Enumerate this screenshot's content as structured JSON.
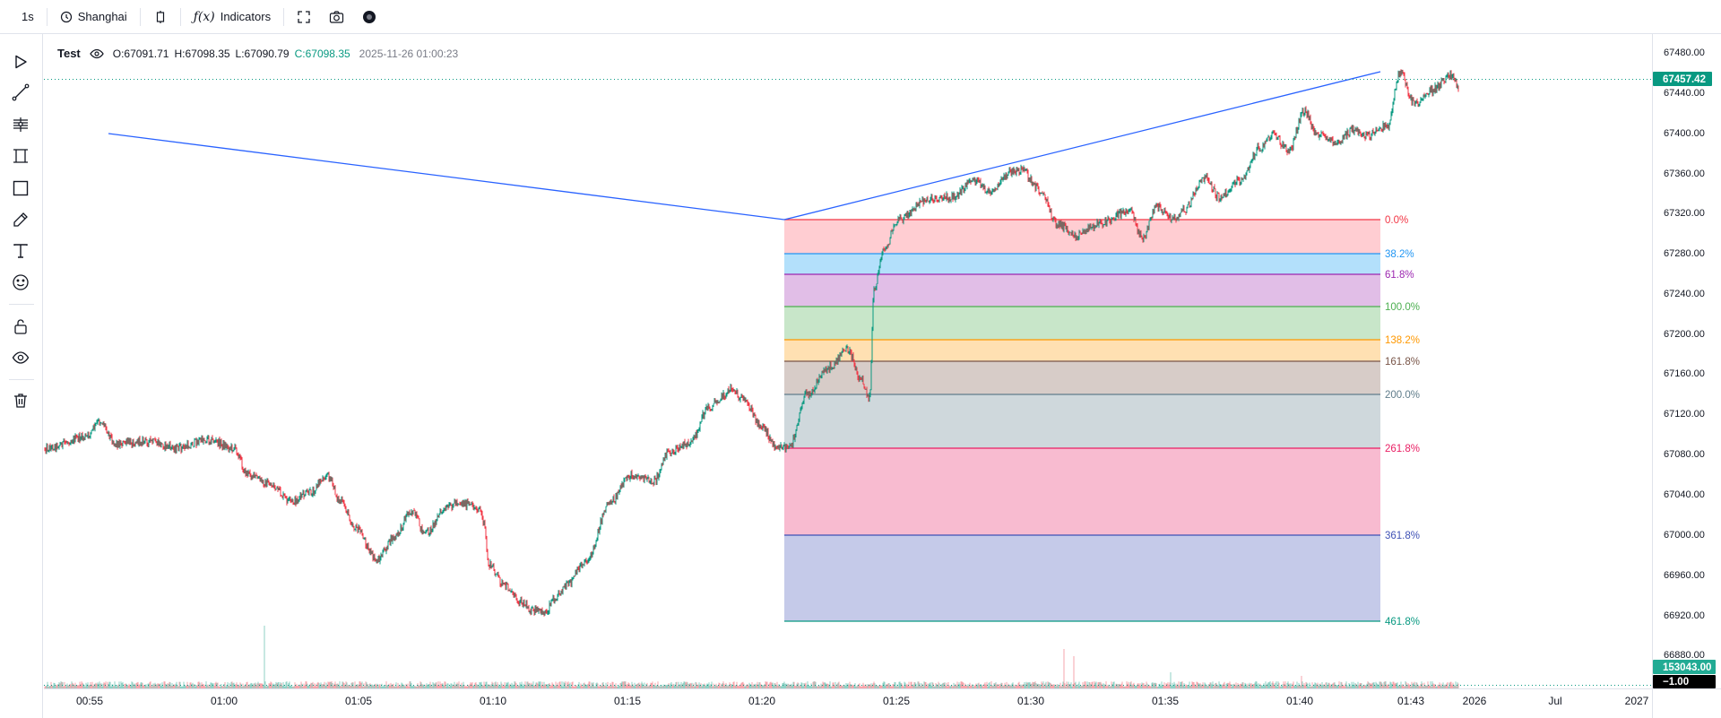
{
  "toolbar": {
    "interval": "1s",
    "timezone": "Shanghai",
    "indicators": "Indicators"
  },
  "legend": {
    "symbol": "Test",
    "open": "O:67091.71",
    "high": "H:67098.35",
    "low": "L:67090.79",
    "close": "C:67098.35",
    "time": "2025-11-26 01:00:23"
  },
  "price_axis": [
    "67480.00",
    "67440.00",
    "67400.00",
    "67360.00",
    "67320.00",
    "67280.00",
    "67240.00",
    "67200.00",
    "67160.00",
    "67120.00",
    "67080.00",
    "67040.00",
    "67000.00",
    "66960.00",
    "66920.00",
    "66880.00"
  ],
  "price_tags": {
    "last_price": "67457.42",
    "volume": "153043.00",
    "other": "−1.00"
  },
  "time_axis": [
    "00:55",
    "01:00",
    "01:05",
    "01:10",
    "01:15",
    "01:20",
    "01:25",
    "01:30",
    "01:35",
    "01:40",
    "01:43",
    "2026",
    "Jul",
    "2027"
  ],
  "fib_levels": [
    {
      "label": "0.0%",
      "line": "#f23645",
      "fill": "#ffcdd2"
    },
    {
      "label": "38.2%",
      "line": "#2196f3",
      "fill": "#b3e0fb"
    },
    {
      "label": "61.8%",
      "line": "#9c27b0",
      "fill": "#e1bee7"
    },
    {
      "label": "100.0%",
      "line": "#4caf50",
      "fill": "#c8e6c9"
    },
    {
      "label": "138.2%",
      "line": "#ff9800",
      "fill": "#ffe0b2"
    },
    {
      "label": "161.8%",
      "line": "#795548",
      "fill": "#d7ccc8"
    },
    {
      "label": "200.0%",
      "line": "#607d8b",
      "fill": "#cfd8dc"
    },
    {
      "label": "261.8%",
      "line": "#e91e63",
      "fill": "#f8bbd0"
    },
    {
      "label": "361.8%",
      "line": "#3f51b5",
      "fill": "#c5cae9"
    },
    {
      "label": "461.8%",
      "line": "#089981",
      "fill": ""
    }
  ],
  "colors": {
    "up": "#089981",
    "down": "#f23645",
    "trendline": "#2962ff",
    "last_price_line": "#089981"
  },
  "icons": [
    "play-icon",
    "trendline-icon",
    "fib-icon",
    "pattern-icon",
    "rectangle-icon",
    "brush-icon",
    "text-icon",
    "emoji-icon",
    "lock-icon",
    "eye-icon",
    "trash-icon"
  ]
}
